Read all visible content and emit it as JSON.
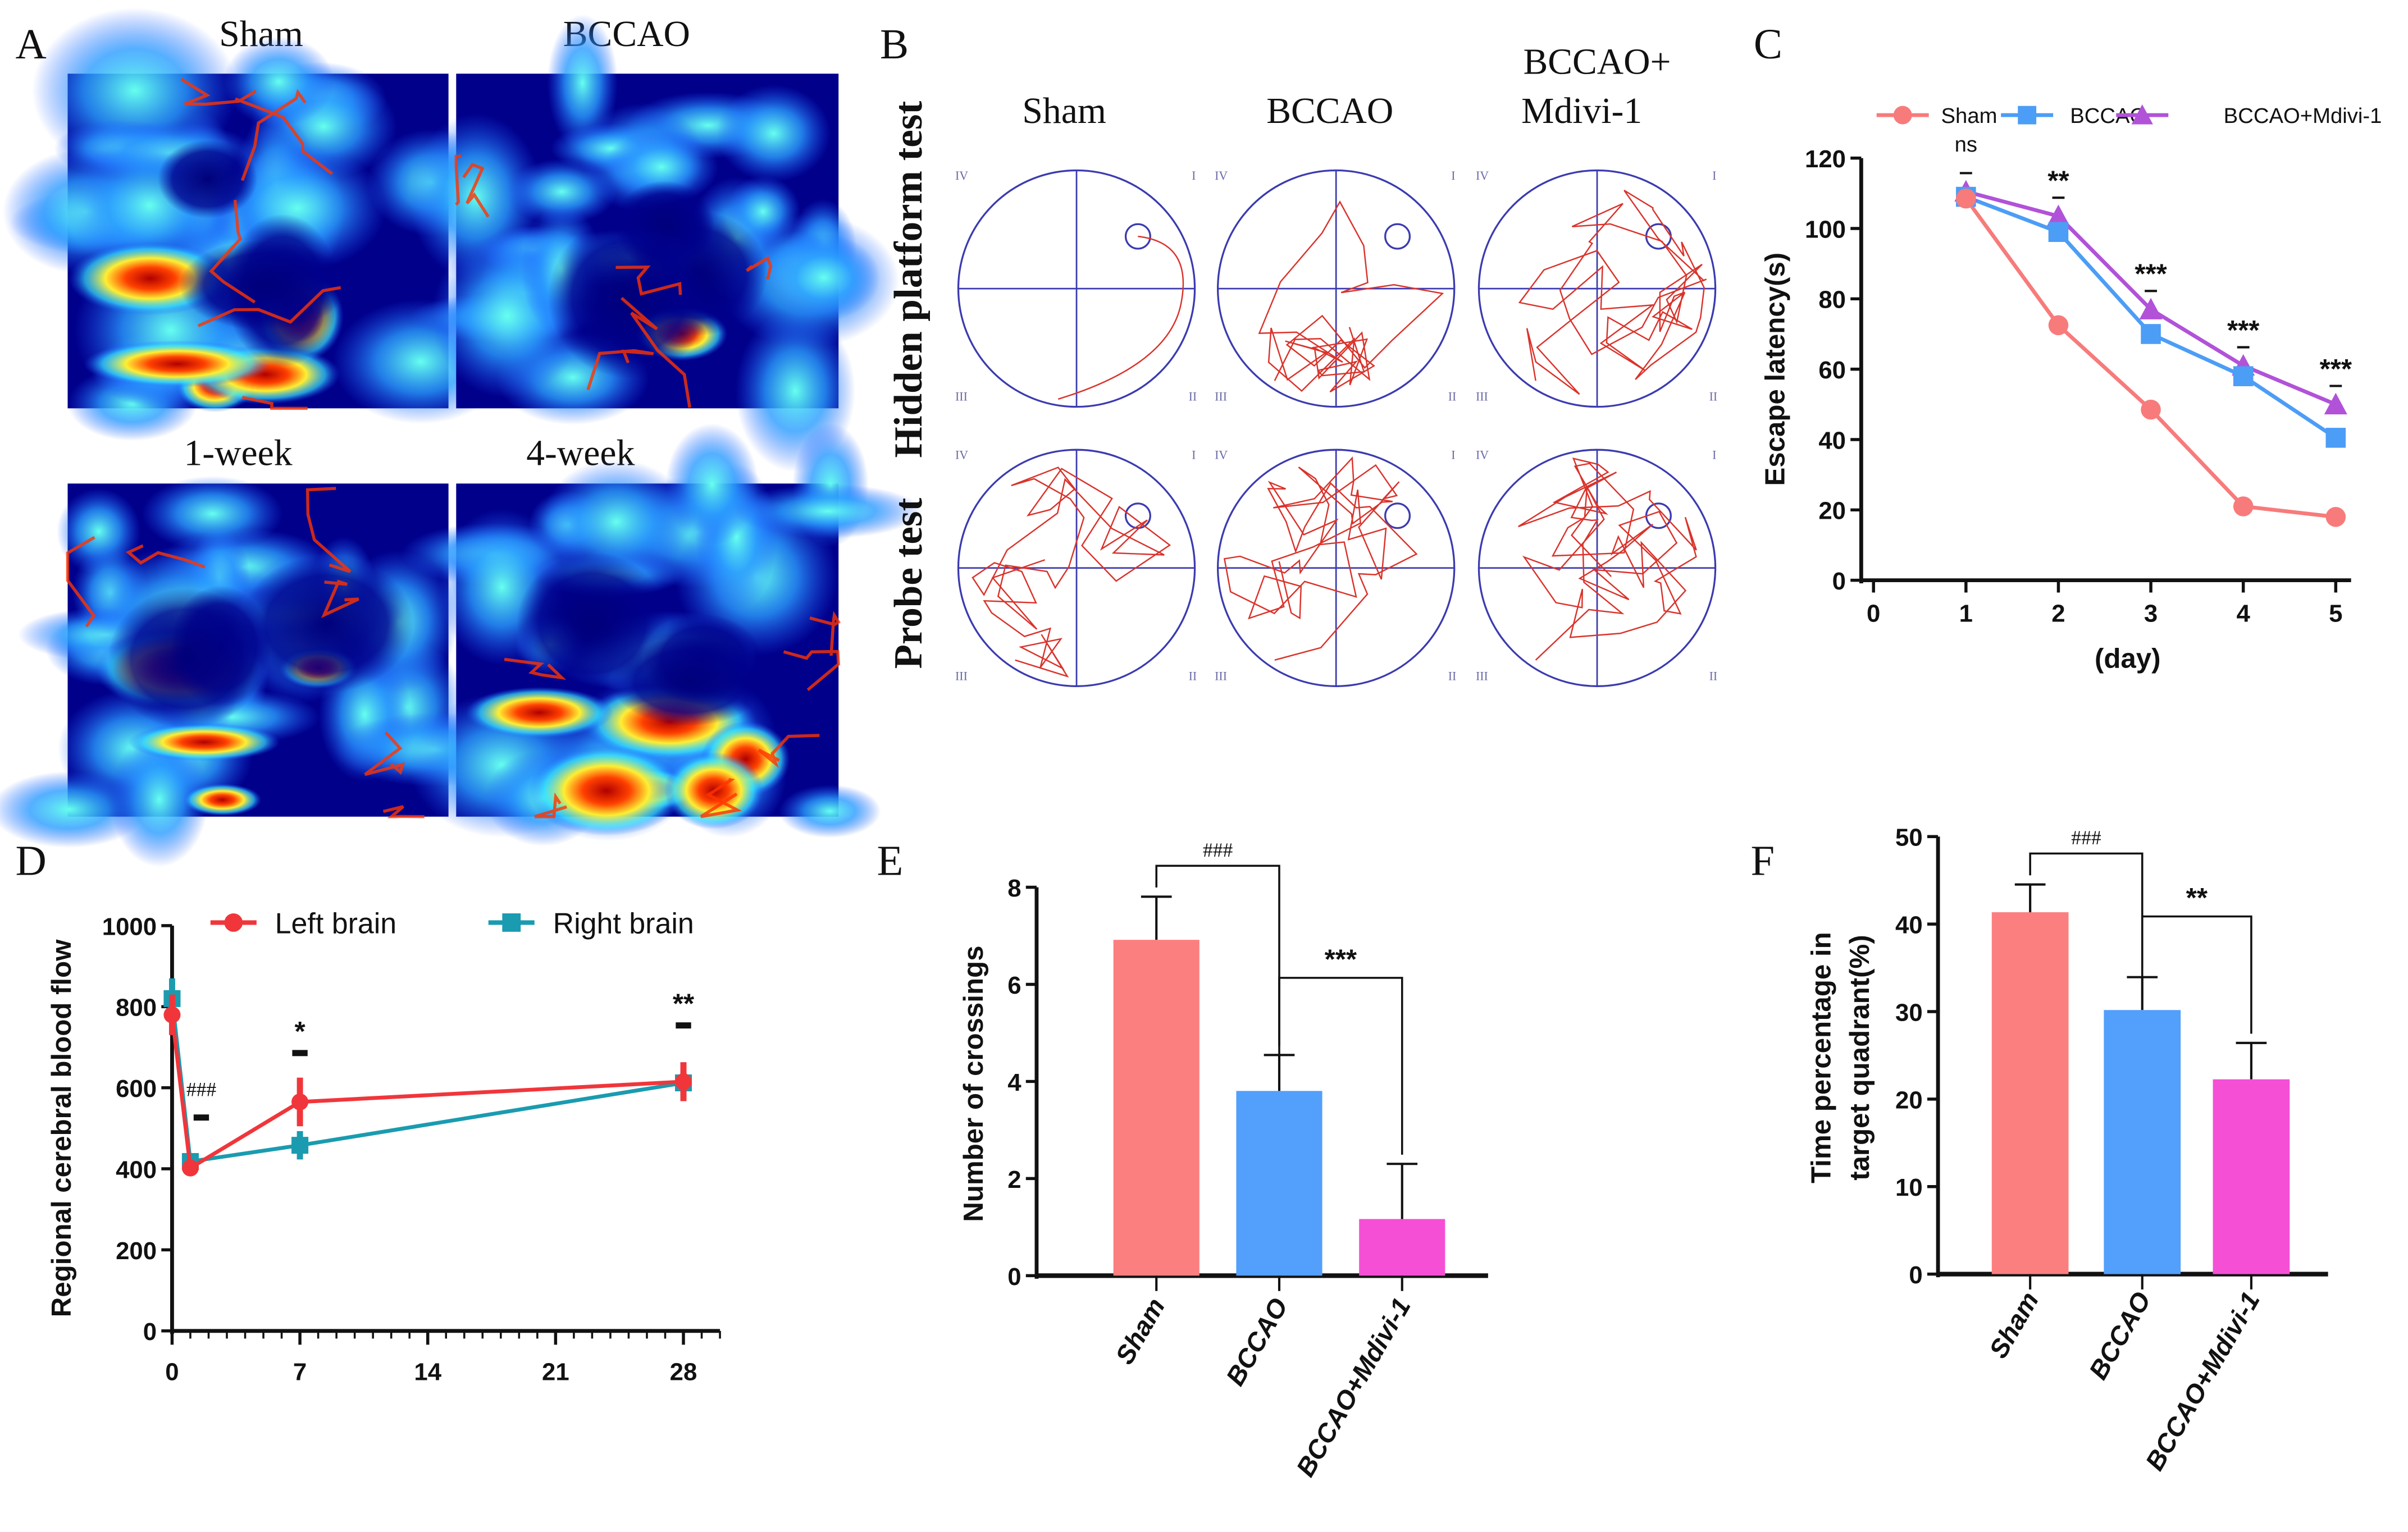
{
  "panel_A": {
    "label": "A",
    "images": [
      {
        "title": "Sham"
      },
      {
        "title": "BCCAO"
      },
      {
        "title": "1-week"
      },
      {
        "title": "4-week"
      }
    ],
    "colormap": [
      "#00008b",
      "#1e5bff",
      "#33e0ff",
      "#ffff33",
      "#ff3300",
      "#a00000"
    ]
  },
  "panel_B": {
    "label": "B",
    "columns": [
      "Sham",
      "BCCAO",
      "BCCAO+",
      "Mdivi-1"
    ],
    "rows": [
      "Hidden platform test",
      "Probe test"
    ],
    "quadrants": [
      "I",
      "II",
      "III",
      "IV"
    ],
    "path_color": "#d9332b",
    "pool_color": "#3b3bb0"
  },
  "chart_data": [
    {
      "panel": "C",
      "type": "line",
      "xlabel": "(day)",
      "ylabel": "Escape latency(s)",
      "xlim": [
        0,
        5
      ],
      "ylim": [
        0,
        120
      ],
      "xticks": [
        "0",
        "1",
        "2",
        "3",
        "4",
        "5"
      ],
      "yticks": [
        "0",
        "20",
        "40",
        "60",
        "80",
        "100",
        "120"
      ],
      "x": [
        1,
        2,
        3,
        4,
        5
      ],
      "legend_position": "top",
      "series": [
        {
          "name": "Sham",
          "color": "#f77b7b",
          "marker": "circle",
          "values": [
            108.5,
            72.5,
            48.5,
            21,
            18
          ]
        },
        {
          "name": "BCCAO",
          "color": "#4c9df5",
          "marker": "square",
          "values": [
            109,
            99,
            70,
            58,
            40.5
          ]
        },
        {
          "name": "BCCAO+Mdivi-1",
          "color": "#b152d8",
          "marker": "triangle",
          "values": [
            110.5,
            103.5,
            77,
            61,
            50
          ]
        }
      ],
      "annotations": [
        "ns",
        "**",
        "***",
        "***",
        "***"
      ]
    },
    {
      "panel": "D",
      "type": "line",
      "xlabel": "",
      "ylabel": "Regional cerebral blood flow",
      "xlim": [
        0,
        30
      ],
      "ylim": [
        0,
        1000
      ],
      "xticks": [
        "0",
        "7",
        "14",
        "21",
        "28"
      ],
      "yticks": [
        "0",
        "200",
        "400",
        "600",
        "800",
        "1000"
      ],
      "x": [
        0,
        1,
        7,
        28
      ],
      "legend_position": "top",
      "series": [
        {
          "name": "Left brain",
          "color": "#f0363b",
          "marker": "circle",
          "values": [
            780,
            402,
            565,
            615
          ],
          "error": [
            50,
            10,
            60,
            48
          ]
        },
        {
          "name": "Right brain",
          "color": "#1a9bb0",
          "marker": "square",
          "values": [
            820,
            418,
            458,
            612
          ],
          "error": [
            50,
            18,
            35,
            35
          ]
        }
      ],
      "annotations": [
        {
          "x": 1,
          "text": "###"
        },
        {
          "x": 7,
          "text": "*"
        },
        {
          "x": 28,
          "text": "**"
        }
      ]
    },
    {
      "panel": "E",
      "type": "bar",
      "xlabel": "",
      "ylabel": "Number of crossings",
      "ylim": [
        0,
        8
      ],
      "yticks": [
        "0",
        "2",
        "4",
        "6",
        "8"
      ],
      "categories": [
        "Sham",
        "BCCAO",
        "BCCAO+Mdivi-1"
      ],
      "values": [
        7.0,
        3.85,
        1.18
      ],
      "error": [
        0.9,
        0.75,
        1.15
      ],
      "colors": [
        "#fc7f7f",
        "#529ffc",
        "#f54fd6"
      ],
      "brackets": [
        {
          "from": 0,
          "to": 1,
          "text": "###"
        },
        {
          "from": 1,
          "to": 2,
          "text": "***"
        }
      ]
    },
    {
      "panel": "F",
      "type": "bar",
      "xlabel": "",
      "ylabel": [
        "Time percentage in",
        "target quadrant(%)"
      ],
      "ylim": [
        0,
        50
      ],
      "yticks": [
        "0",
        "10",
        "20",
        "30",
        "40",
        "50"
      ],
      "categories": [
        "Sham",
        "BCCAO",
        "BCCAO+Mdivi-1"
      ],
      "values": [
        41.8,
        30.5,
        22.5
      ],
      "error": [
        3.2,
        3.8,
        4.2
      ],
      "colors": [
        "#fc7f7f",
        "#529ffc",
        "#f54fd6"
      ],
      "brackets": [
        {
          "from": 0,
          "to": 1,
          "text": "###"
        },
        {
          "from": 1,
          "to": 2,
          "text": "**"
        }
      ]
    }
  ]
}
